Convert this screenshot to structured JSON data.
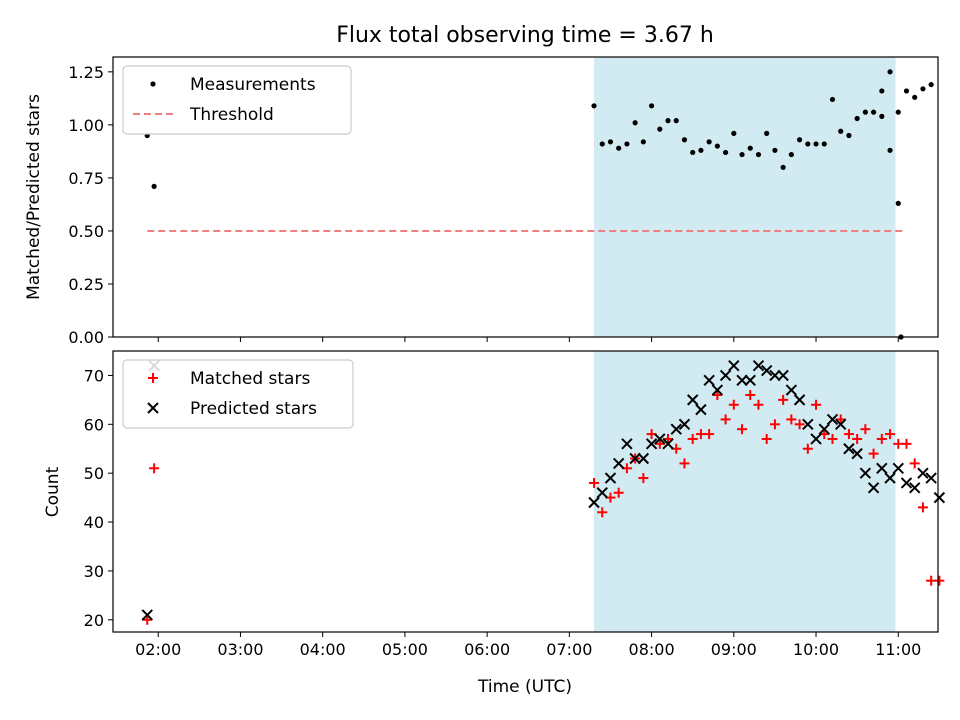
{
  "chart_data": {
    "title": "Flux total observing time = 3.67 h",
    "xlabel": "Time (UTC)",
    "x_tick_labels": [
      "02:00",
      "03:00",
      "04:00",
      "05:00",
      "06:00",
      "07:00",
      "08:00",
      "09:00",
      "10:00",
      "11:00"
    ],
    "xlim": [
      "01:27",
      "11:29"
    ],
    "shaded_interval": {
      "start": "07:18",
      "end": "10:58",
      "color": "#add8e6"
    },
    "panels": [
      {
        "type": "scatter",
        "ylabel": "Matched/Predicted stars",
        "ylim": [
          0,
          1.32
        ],
        "y_ticks": [
          0.0,
          0.25,
          0.5,
          0.75,
          1.0,
          1.25
        ],
        "y_tick_labels": [
          "0.00",
          "0.25",
          "0.50",
          "0.75",
          "1.00",
          "1.25"
        ],
        "legend": {
          "position": "upper-left"
        },
        "series": [
          {
            "name": "Measurements",
            "marker": "dot",
            "color": "#000000",
            "points": [
              [
                "01:52",
                0.95
              ],
              [
                "01:57",
                0.71
              ],
              [
                "07:18",
                1.09
              ],
              [
                "07:24",
                0.91
              ],
              [
                "07:30",
                0.92
              ],
              [
                "07:36",
                0.89
              ],
              [
                "07:42",
                0.91
              ],
              [
                "07:48",
                1.01
              ],
              [
                "07:54",
                0.92
              ],
              [
                "08:00",
                1.09
              ],
              [
                "08:06",
                0.98
              ],
              [
                "08:12",
                1.02
              ],
              [
                "08:18",
                1.02
              ],
              [
                "08:24",
                0.93
              ],
              [
                "08:30",
                0.87
              ],
              [
                "08:36",
                0.88
              ],
              [
                "08:42",
                0.92
              ],
              [
                "08:48",
                0.9
              ],
              [
                "08:54",
                0.87
              ],
              [
                "09:00",
                0.96
              ],
              [
                "09:06",
                0.86
              ],
              [
                "09:12",
                0.89
              ],
              [
                "09:18",
                0.86
              ],
              [
                "09:24",
                0.96
              ],
              [
                "09:30",
                0.88
              ],
              [
                "09:36",
                0.8
              ],
              [
                "09:42",
                0.86
              ],
              [
                "09:48",
                0.93
              ],
              [
                "09:54",
                0.91
              ],
              [
                "10:00",
                0.91
              ],
              [
                "10:06",
                0.91
              ],
              [
                "10:12",
                1.12
              ],
              [
                "10:18",
                0.97
              ],
              [
                "10:24",
                0.95
              ],
              [
                "10:30",
                1.03
              ],
              [
                "10:36",
                1.06
              ],
              [
                "10:42",
                1.06
              ],
              [
                "10:48",
                1.16
              ],
              [
                "10:54",
                1.25
              ],
              [
                "11:00",
                1.06
              ],
              [
                "11:06",
                1.16
              ],
              [
                "11:12",
                1.13
              ],
              [
                "11:18",
                1.17
              ],
              [
                "11:24",
                1.19
              ],
              [
                "10:48",
                1.04
              ],
              [
                "10:54",
                0.88
              ],
              [
                "11:00",
                0.63
              ],
              [
                "11:02",
                0.0
              ]
            ]
          },
          {
            "name": "Threshold",
            "type": "line",
            "style": "dashed",
            "color": "#f08080",
            "points": [
              [
                "01:52",
                0.5
              ],
              [
                "11:03",
                0.5
              ]
            ]
          }
        ]
      },
      {
        "type": "scatter",
        "ylabel": "Count",
        "ylim": [
          17.5,
          75
        ],
        "y_ticks": [
          20,
          30,
          40,
          50,
          60,
          70
        ],
        "y_tick_labels": [
          "20",
          "30",
          "40",
          "50",
          "60",
          "70"
        ],
        "legend": {
          "position": "upper-left"
        },
        "series": [
          {
            "name": "Matched stars",
            "marker": "plus",
            "color": "#ff0000",
            "points": [
              [
                "01:52",
                20
              ],
              [
                "01:57",
                51
              ],
              [
                "07:18",
                48
              ],
              [
                "07:24",
                42
              ],
              [
                "07:30",
                45
              ],
              [
                "07:36",
                46
              ],
              [
                "07:42",
                51
              ],
              [
                "07:48",
                53
              ],
              [
                "07:54",
                49
              ],
              [
                "08:00",
                58
              ],
              [
                "08:06",
                56
              ],
              [
                "08:12",
                57
              ],
              [
                "08:18",
                55
              ],
              [
                "08:24",
                52
              ],
              [
                "08:30",
                57
              ],
              [
                "08:36",
                58
              ],
              [
                "08:42",
                58
              ],
              [
                "08:48",
                66
              ],
              [
                "08:54",
                61
              ],
              [
                "09:00",
                64
              ],
              [
                "09:06",
                59
              ],
              [
                "09:12",
                66
              ],
              [
                "09:18",
                64
              ],
              [
                "09:24",
                57
              ],
              [
                "09:30",
                60
              ],
              [
                "09:36",
                65
              ],
              [
                "09:42",
                61
              ],
              [
                "09:48",
                60
              ],
              [
                "09:54",
                55
              ],
              [
                "10:00",
                64
              ],
              [
                "10:06",
                58
              ],
              [
                "10:12",
                57
              ],
              [
                "10:18",
                61
              ],
              [
                "10:24",
                58
              ],
              [
                "10:30",
                57
              ],
              [
                "10:36",
                59
              ],
              [
                "10:42",
                54
              ],
              [
                "10:48",
                57
              ],
              [
                "10:54",
                58
              ],
              [
                "11:00",
                56
              ],
              [
                "11:06",
                56
              ],
              [
                "11:12",
                52
              ],
              [
                "11:18",
                43
              ],
              [
                "11:24",
                28
              ],
              [
                "11:30",
                28
              ]
            ]
          },
          {
            "name": "Predicted stars",
            "marker": "x",
            "color": "#000000",
            "points": [
              [
                "01:52",
                21
              ],
              [
                "01:57",
                72
              ],
              [
                "07:18",
                44
              ],
              [
                "07:24",
                46
              ],
              [
                "07:30",
                49
              ],
              [
                "07:36",
                52
              ],
              [
                "07:42",
                56
              ],
              [
                "07:48",
                53
              ],
              [
                "07:54",
                53
              ],
              [
                "08:00",
                56
              ],
              [
                "08:06",
                57
              ],
              [
                "08:12",
                56
              ],
              [
                "08:18",
                59
              ],
              [
                "08:24",
                60
              ],
              [
                "08:30",
                65
              ],
              [
                "08:36",
                63
              ],
              [
                "08:42",
                69
              ],
              [
                "08:48",
                67
              ],
              [
                "08:54",
                70
              ],
              [
                "09:00",
                72
              ],
              [
                "09:06",
                69
              ],
              [
                "09:12",
                69
              ],
              [
                "09:18",
                72
              ],
              [
                "09:24",
                71
              ],
              [
                "09:30",
                70
              ],
              [
                "09:36",
                70
              ],
              [
                "09:42",
                67
              ],
              [
                "09:48",
                65
              ],
              [
                "09:54",
                60
              ],
              [
                "10:00",
                57
              ],
              [
                "10:06",
                59
              ],
              [
                "10:12",
                61
              ],
              [
                "10:18",
                60
              ],
              [
                "10:24",
                55
              ],
              [
                "10:30",
                54
              ],
              [
                "10:36",
                50
              ],
              [
                "10:42",
                47
              ],
              [
                "10:48",
                51
              ],
              [
                "10:54",
                49
              ],
              [
                "11:00",
                51
              ],
              [
                "11:06",
                48
              ],
              [
                "11:12",
                47
              ],
              [
                "11:18",
                50
              ],
              [
                "11:24",
                49
              ],
              [
                "11:30",
                45
              ]
            ]
          }
        ]
      }
    ]
  }
}
